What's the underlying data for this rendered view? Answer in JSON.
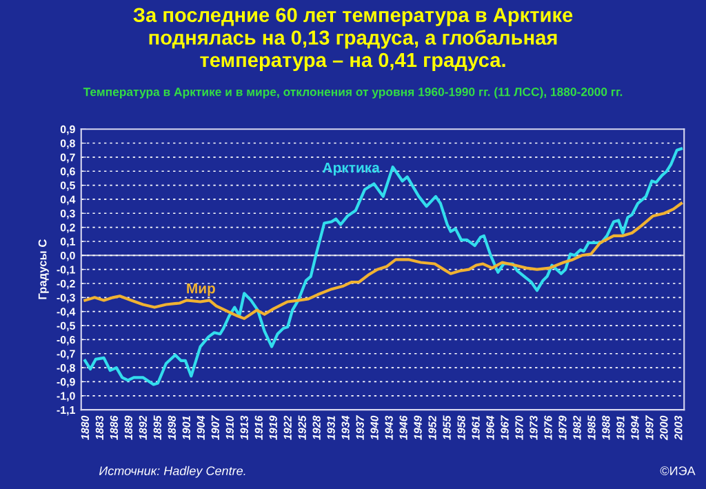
{
  "chart_data": {
    "type": "line",
    "title": "За последние 60 лет температура в Арктике\nподнялась на 0,13 градуса, а глобальная\nтемпература – на 0,41 градуса.",
    "subtitle": "Температура в Арктике и в мире, отклонения от уровня 1960-1990 гг. (11 ЛСС), 1880-2000 гг.",
    "ylabel": "Градусы С",
    "annotations": [
      "Источник: Hadley Centre.",
      "©ИЭА"
    ],
    "series": [
      {
        "name": "Арктика",
        "color": "#33dded",
        "x": [
          1879.8,
          1880.9,
          1882.0,
          1883.7,
          1885.0,
          1886.3,
          1887.5,
          1888.7,
          1889.9,
          1891.8,
          1894.0,
          1894.9,
          1896.6,
          1898.5,
          1899.7,
          1900.6,
          1901.8,
          1903.7,
          1905.4,
          1906.6,
          1907.8,
          1908.5,
          1909.7,
          1910.8,
          1911.8,
          1912.8,
          1914.2,
          1915.6,
          1917.0,
          1918.5,
          1919.7,
          1920.9,
          1921.8,
          1922.8,
          1924.0,
          1925.6,
          1926.6,
          1927.8,
          1929.4,
          1930.9,
          1931.8,
          1932.8,
          1934.2,
          1935.9,
          1937.8,
          1939.7,
          1941.6,
          1943.6,
          1945.6,
          1946.6,
          1949.0,
          1950.6,
          1952.5,
          1953.5,
          1954.9,
          1955.6,
          1956.6,
          1957.8,
          1959.0,
          1960.6,
          1961.8,
          1962.5,
          1963.9,
          1965.4,
          1966.6,
          1968.5,
          1969.4,
          1972.3,
          1973.5,
          1974.7,
          1975.6,
          1976.6,
          1978.5,
          1979.4,
          1980.4,
          1981.3,
          1982.5,
          1983.2,
          1984.2,
          1985.6,
          1986.8,
          1988.0,
          1989.4,
          1990.4,
          1991.3,
          1992.3,
          1993.2,
          1994.4,
          1996.1,
          1997.3,
          1998.2,
          1999.4,
          2000.4,
          2001.3,
          2002.5,
          2003.4
        ],
        "values": [
          -0.75,
          -0.81,
          -0.74,
          -0.73,
          -0.82,
          -0.8,
          -0.87,
          -0.89,
          -0.87,
          -0.87,
          -0.92,
          -0.91,
          -0.77,
          -0.71,
          -0.75,
          -0.75,
          -0.86,
          -0.65,
          -0.58,
          -0.55,
          -0.56,
          -0.52,
          -0.43,
          -0.37,
          -0.43,
          -0.27,
          -0.32,
          -0.39,
          -0.54,
          -0.65,
          -0.56,
          -0.52,
          -0.51,
          -0.39,
          -0.32,
          -0.18,
          -0.15,
          0.02,
          0.23,
          0.24,
          0.26,
          0.22,
          0.28,
          0.32,
          0.47,
          0.51,
          0.42,
          0.63,
          0.53,
          0.56,
          0.42,
          0.35,
          0.42,
          0.37,
          0.22,
          0.17,
          0.19,
          0.11,
          0.11,
          0.07,
          0.13,
          0.14,
          0.0,
          -0.12,
          -0.06,
          -0.06,
          -0.11,
          -0.19,
          -0.25,
          -0.18,
          -0.15,
          -0.07,
          -0.13,
          -0.1,
          0.01,
          0.0,
          0.04,
          0.03,
          0.09,
          0.09,
          0.09,
          0.14,
          0.24,
          0.25,
          0.16,
          0.27,
          0.29,
          0.37,
          0.42,
          0.53,
          0.52,
          0.57,
          0.6,
          0.65,
          0.75,
          0.76
        ]
      },
      {
        "name": "Мир",
        "color": "#f0b232",
        "x": [
          1879.8,
          1881.8,
          1883.7,
          1885.6,
          1887.0,
          1889.4,
          1891.8,
          1894.2,
          1896.6,
          1899.4,
          1900.9,
          1903.7,
          1905.6,
          1907.0,
          1909.4,
          1911.3,
          1912.8,
          1915.4,
          1917.0,
          1918.9,
          1920.6,
          1921.8,
          1924.2,
          1926.1,
          1928.0,
          1930.9,
          1933.2,
          1935.1,
          1936.6,
          1938.5,
          1940.4,
          1942.3,
          1944.2,
          1947.0,
          1949.4,
          1952.3,
          1953.7,
          1955.6,
          1957.5,
          1959.4,
          1960.9,
          1962.3,
          1964.2,
          1966.3,
          1968.9,
          1971.3,
          1973.5,
          1976.1,
          1979.0,
          1980.9,
          1982.8,
          1984.7,
          1986.6,
          1989.4,
          1991.3,
          1993.2,
          1995.1,
          1997.5,
          1999.9,
          2001.8,
          2003.4
        ],
        "values": [
          -0.32,
          -0.3,
          -0.32,
          -0.3,
          -0.29,
          -0.32,
          -0.35,
          -0.37,
          -0.35,
          -0.34,
          -0.32,
          -0.33,
          -0.32,
          -0.36,
          -0.4,
          -0.43,
          -0.45,
          -0.39,
          -0.42,
          -0.38,
          -0.35,
          -0.33,
          -0.32,
          -0.31,
          -0.28,
          -0.24,
          -0.22,
          -0.19,
          -0.19,
          -0.14,
          -0.1,
          -0.08,
          -0.03,
          -0.03,
          -0.05,
          -0.06,
          -0.09,
          -0.13,
          -0.11,
          -0.1,
          -0.07,
          -0.06,
          -0.09,
          -0.05,
          -0.07,
          -0.09,
          -0.1,
          -0.09,
          -0.05,
          -0.03,
          0.0,
          0.01,
          0.09,
          0.14,
          0.14,
          0.16,
          0.21,
          0.28,
          0.3,
          0.33,
          0.37
        ]
      }
    ],
    "xlim": [
      1879,
      2004
    ],
    "xticks": [
      1880,
      1883,
      1886,
      1889,
      1892,
      1895,
      1898,
      1901,
      1904,
      1907,
      1910,
      1913,
      1916,
      1919,
      1922,
      1925,
      1928,
      1931,
      1934,
      1937,
      1940,
      1943,
      1946,
      1949,
      1952,
      1955,
      1958,
      1961,
      1964,
      1967,
      1970,
      1973,
      1976,
      1979,
      1982,
      1985,
      1988,
      1991,
      1994,
      1997,
      2000,
      2003
    ],
    "ylim": [
      -1.1,
      0.9
    ],
    "yticks": [
      {
        "value": 0.9,
        "label": "0,9"
      },
      {
        "value": 0.8,
        "label": "0,8"
      },
      {
        "value": 0.7,
        "label": "0,7"
      },
      {
        "value": 0.6,
        "label": "0,6"
      },
      {
        "value": 0.5,
        "label": "0,5"
      },
      {
        "value": 0.4,
        "label": "0,4"
      },
      {
        "value": 0.3,
        "label": "0,3"
      },
      {
        "value": 0.2,
        "label": "0,2"
      },
      {
        "value": 0.1,
        "label": "0,1"
      },
      {
        "value": 0.0,
        "label": "0,0"
      },
      {
        "value": -0.1,
        "label": "-0,1"
      },
      {
        "value": -0.2,
        "label": "-0,2"
      },
      {
        "value": -0.3,
        "label": "-0,3"
      },
      {
        "value": -0.4,
        "label": "-0,4"
      },
      {
        "value": -0.5,
        "label": "-0,5"
      },
      {
        "value": -0.6,
        "label": "-0,6"
      },
      {
        "value": -0.7,
        "label": "-0,7"
      },
      {
        "value": -0.8,
        "label": "-0,8"
      },
      {
        "value": -0.9,
        "label": "-0,9"
      },
      {
        "value": -1.0,
        "label": "-1,0"
      },
      {
        "value": -1.1,
        "label": "-1,1"
      }
    ],
    "ref_lines": [
      {
        "axis": "y",
        "value": 0,
        "color": "#d0d0e0",
        "line_style": "solid"
      }
    ],
    "grid": "y",
    "legend": false,
    "line_style": "solid",
    "marker": "none"
  }
}
